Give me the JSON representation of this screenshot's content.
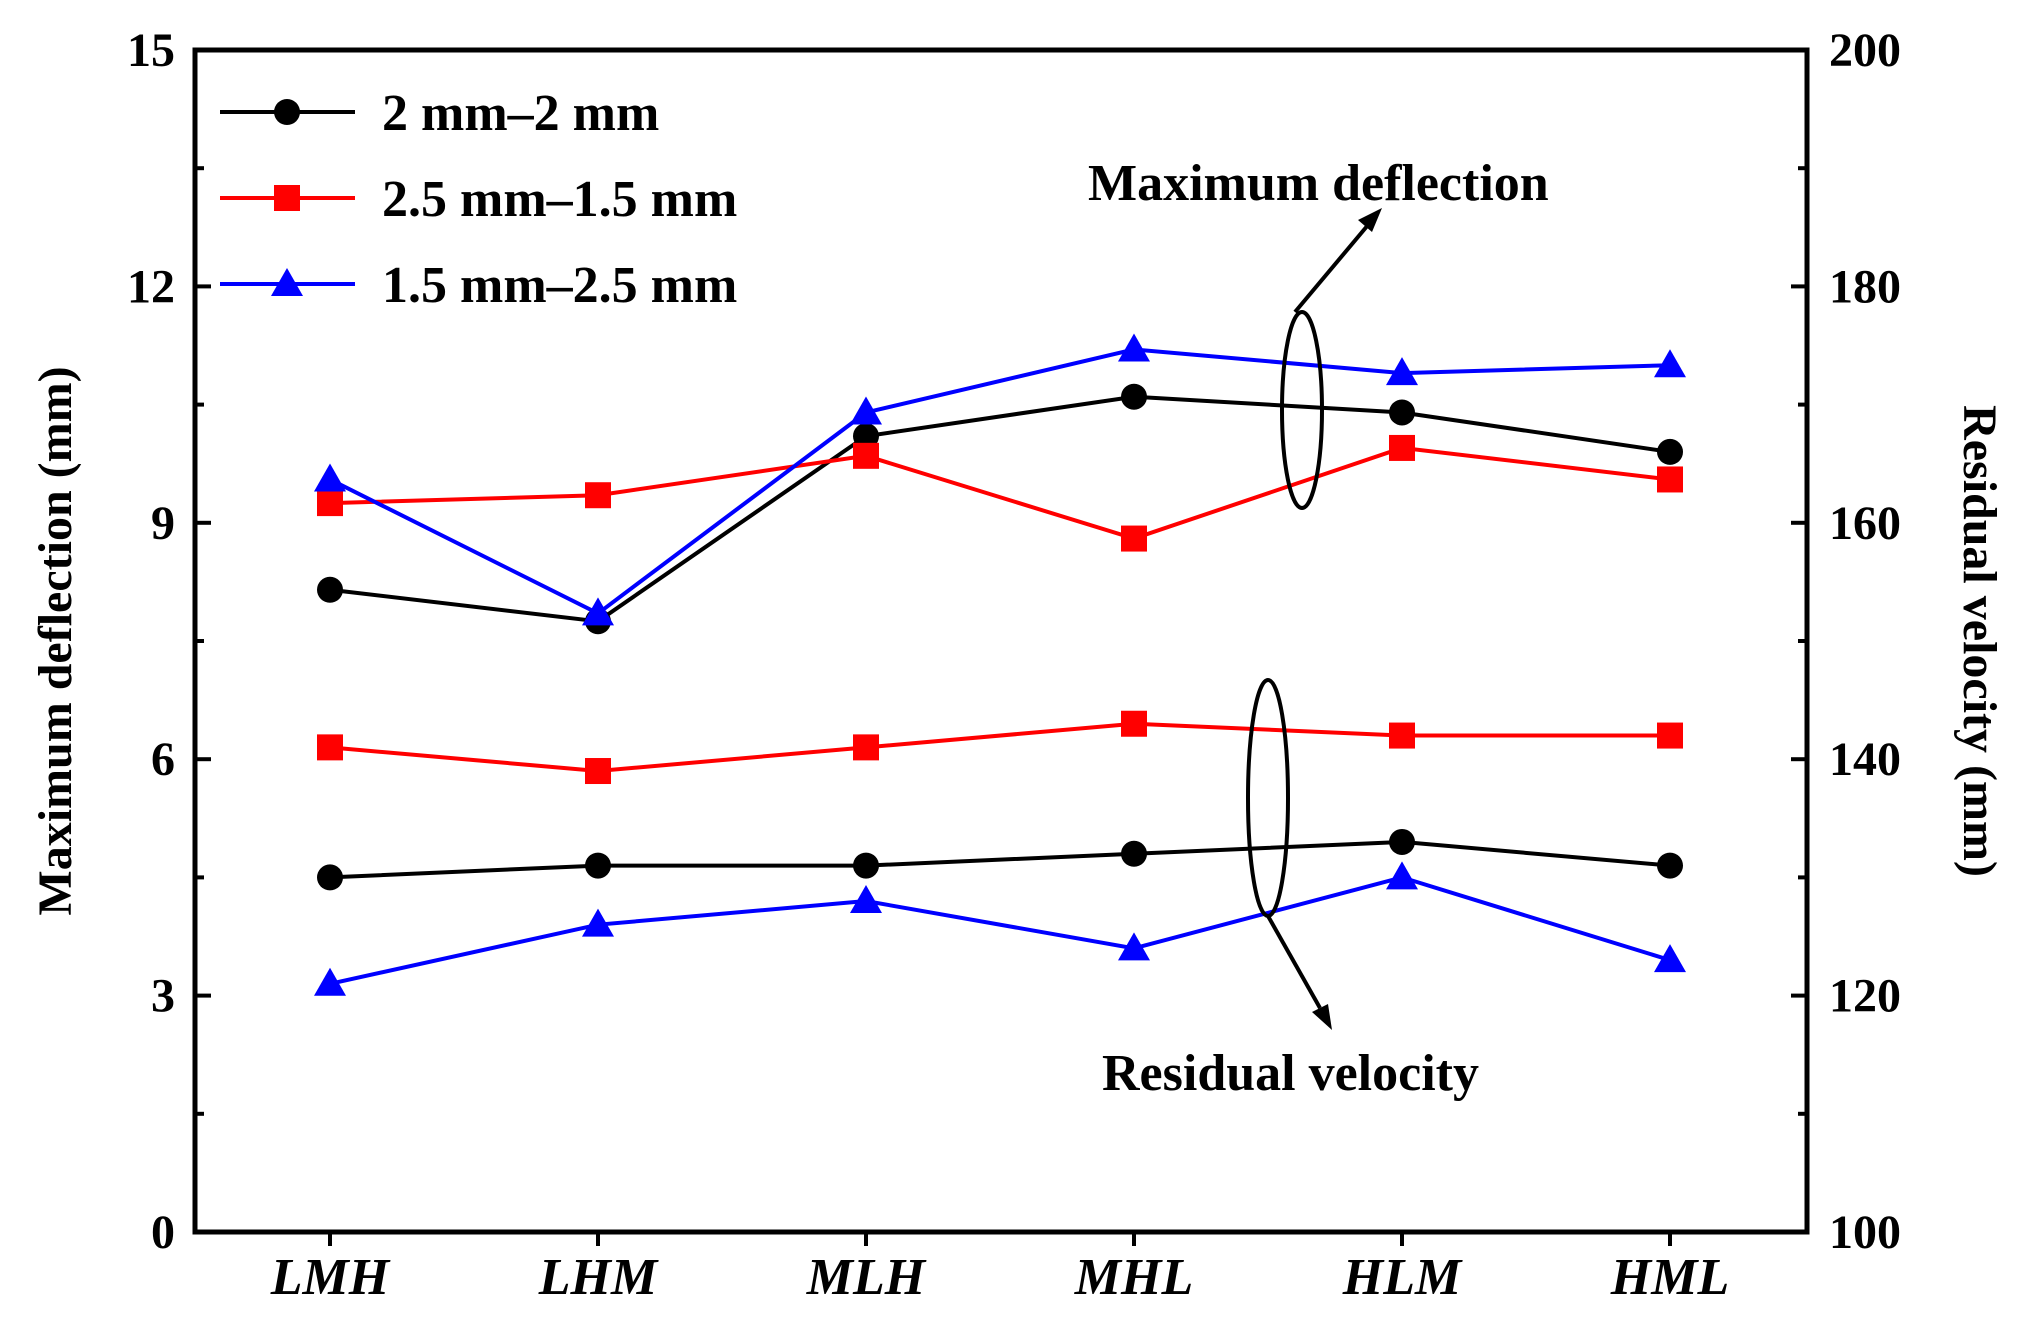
{
  "chart_data": {
    "type": "line",
    "categories": [
      "LMH",
      "LHM",
      "MLH",
      "MHL",
      "HLM",
      "HML"
    ],
    "left_axis": {
      "label": "Maximum deflection (mm)",
      "ylim": [
        0,
        15
      ],
      "ticks": [
        "0",
        "3",
        "6",
        "9",
        "12",
        "15"
      ]
    },
    "right_axis": {
      "label": "Residual velocity (mm)",
      "ylim": [
        100,
        200
      ],
      "ticks": [
        "100",
        "120",
        "140",
        "160",
        "180",
        "200"
      ]
    },
    "series": [
      {
        "name": "2 mm–2 mm",
        "color": "#000000",
        "marker": "circle",
        "deflection": [
          8.15,
          7.75,
          10.1,
          10.6,
          10.4,
          9.9
        ],
        "residual_velocity": [
          130,
          131,
          131,
          132,
          133,
          131
        ]
      },
      {
        "name": "2.5 mm–1.5 mm",
        "color": "#ff0000",
        "marker": "square",
        "deflection": [
          9.25,
          9.35,
          9.85,
          8.8,
          9.95,
          9.55
        ],
        "residual_velocity": [
          141,
          139,
          141,
          143,
          142,
          142
        ]
      },
      {
        "name": "1.5 mm–2.5 mm",
        "color": "#0000ff",
        "marker": "triangle",
        "deflection": [
          9.55,
          7.85,
          10.4,
          11.2,
          10.9,
          11.0
        ],
        "residual_velocity": [
          121,
          126,
          128,
          124,
          130,
          123
        ]
      }
    ],
    "annotations": {
      "deflection": "Maximum deflection",
      "velocity": "Residual velocity"
    },
    "legend_position": "top-left"
  }
}
